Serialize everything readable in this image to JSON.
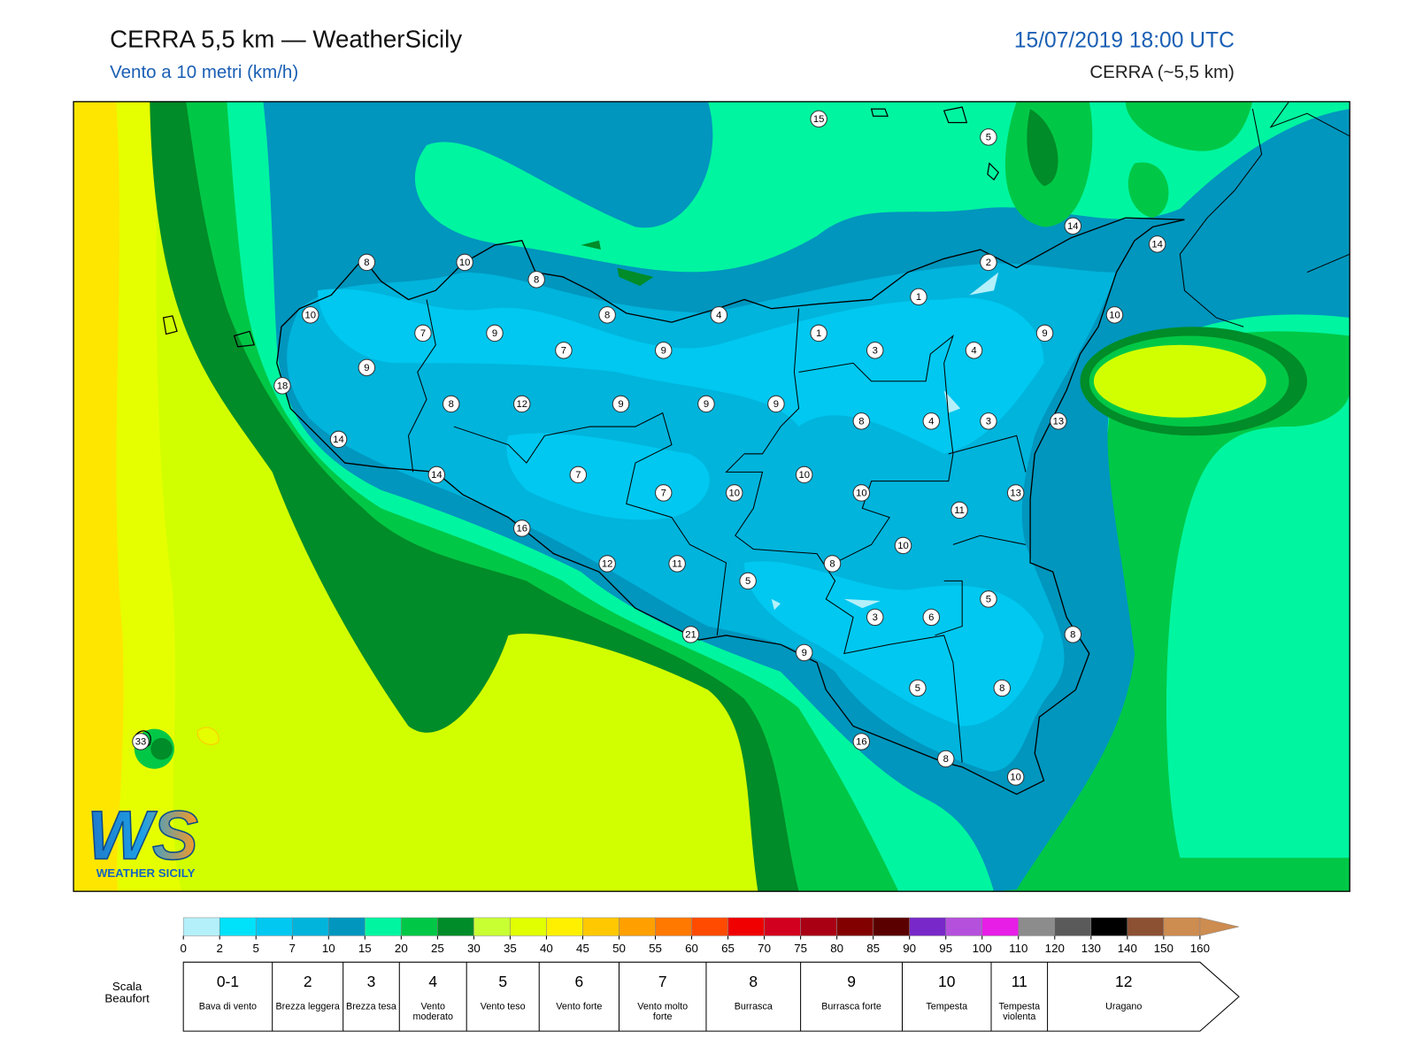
{
  "header": {
    "title": "CERRA 5,5 km — WeatherSicily",
    "subtitle": "Vento a 10 metri (km/h)",
    "datetime": "15/07/2019 18:00 UTC",
    "model": "CERRA (~5,5 km)"
  },
  "map": {
    "stations": [
      15,
      5,
      14,
      14,
      2,
      8,
      10,
      8,
      1,
      10,
      8,
      4,
      10,
      7,
      9,
      1,
      9,
      7,
      9,
      3,
      4,
      9,
      18,
      8,
      12,
      9,
      9,
      9,
      8,
      4,
      3,
      13,
      14,
      14,
      7,
      10,
      7,
      10,
      10,
      13,
      11,
      16,
      10,
      12,
      11,
      8,
      5,
      5,
      6,
      3,
      8,
      21,
      9,
      5,
      8,
      33,
      16,
      8,
      10
    ]
  },
  "logo": {
    "mark": "WS",
    "name": "WEATHER SICILY"
  },
  "legend": {
    "ticks": [
      0,
      2,
      5,
      7,
      10,
      15,
      20,
      25,
      30,
      35,
      40,
      45,
      50,
      55,
      60,
      65,
      70,
      75,
      80,
      85,
      90,
      95,
      100,
      110,
      120,
      130,
      140,
      150,
      160
    ],
    "colors": [
      "#b4f0fa",
      "#00e1fa",
      "#00c8f0",
      "#00b4dc",
      "#0096be",
      "#00f5a0",
      "#00c846",
      "#008c28",
      "#c8ff32",
      "#e1ff00",
      "#fff000",
      "#ffc800",
      "#ffa000",
      "#ff7800",
      "#ff4b00",
      "#f00000",
      "#d2001e",
      "#aa0014",
      "#820000",
      "#5a0000",
      "#7828c8",
      "#b450dc",
      "#e61ee6",
      "#8c8c8c",
      "#5a5a5a",
      "#000000",
      "#8c5032",
      "#cd8c50"
    ]
  },
  "beaufort": {
    "label": "Scala Beaufort",
    "classes": [
      {
        "force": "0-1",
        "name": "Bava di vento"
      },
      {
        "force": "2",
        "name": "Brezza leggera"
      },
      {
        "force": "3",
        "name": "Brezza tesa"
      },
      {
        "force": "4",
        "name": "Vento moderato"
      },
      {
        "force": "5",
        "name": "Vento teso"
      },
      {
        "force": "6",
        "name": "Vento forte"
      },
      {
        "force": "7",
        "name": "Vento molto forte"
      },
      {
        "force": "8",
        "name": "Burrasca"
      },
      {
        "force": "9",
        "name": "Burrasca forte"
      },
      {
        "force": "10",
        "name": "Tempesta"
      },
      {
        "force": "11",
        "name": "Tempesta violenta"
      },
      {
        "force": "12",
        "name": "Uragano"
      }
    ]
  }
}
